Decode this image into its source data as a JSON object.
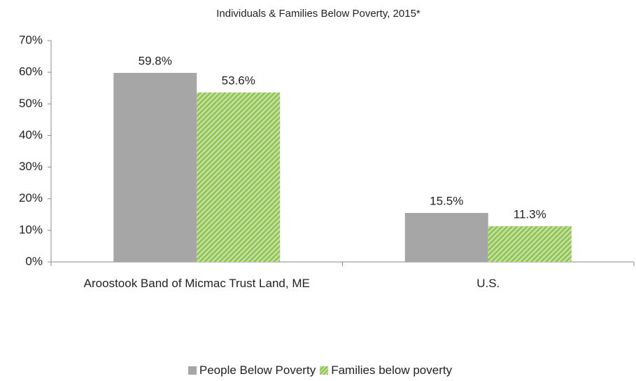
{
  "chart_data": {
    "type": "bar",
    "title": "Individuals & Families Below Poverty, 2015*",
    "categories": [
      "Aroostook Band of Micmac Trust Land, ME",
      "U.S."
    ],
    "series": [
      {
        "name": "People Below Poverty",
        "color": "#a6a6a6",
        "values": [
          59.8,
          15.5
        ],
        "value_labels": [
          "59.8%",
          "15.5%"
        ]
      },
      {
        "name": "Families below poverty",
        "color": "#92c850",
        "pattern": "hatch",
        "values": [
          53.6,
          11.3
        ],
        "value_labels": [
          "53.6%",
          "11.3%"
        ]
      }
    ],
    "ylim": [
      0,
      70
    ],
    "yticks": [
      {
        "value": 0,
        "label": "0%"
      },
      {
        "value": 10,
        "label": "10%"
      },
      {
        "value": 20,
        "label": "20%"
      },
      {
        "value": 30,
        "label": "30%"
      },
      {
        "value": 40,
        "label": "40%"
      },
      {
        "value": 50,
        "label": "50%"
      },
      {
        "value": 60,
        "label": "60%"
      },
      {
        "value": 70,
        "label": "70%"
      }
    ],
    "grid": false,
    "legend": "bottom"
  }
}
